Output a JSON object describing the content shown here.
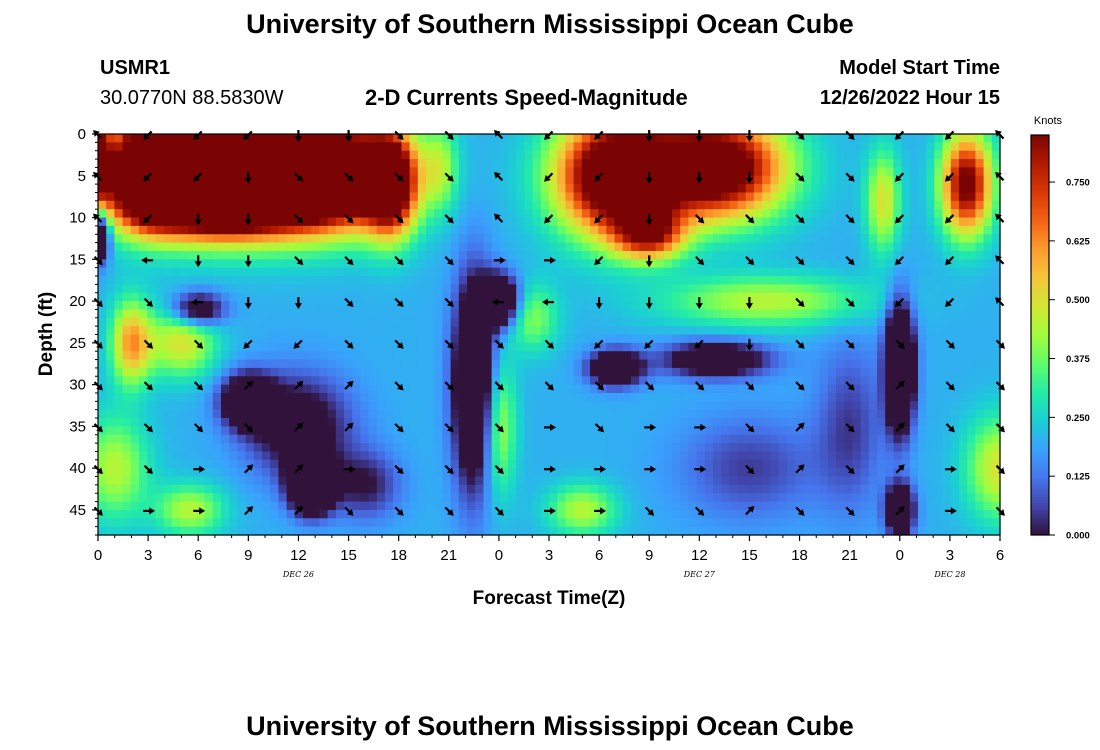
{
  "header": {
    "title": "University of Southern Mississippi Ocean Cube",
    "station_id": "USMR1",
    "coordinates": "30.0770N  88.5830W",
    "plot_title": "2-D Currents Speed-Magnitude",
    "model_start_label": "Model Start Time",
    "model_start_value": "12/26/2022 Hour 15"
  },
  "footer": {
    "title": "University of Southern Mississippi Ocean Cube"
  },
  "chart_data": {
    "type": "heatmap",
    "title": "2-D Currents Speed-Magnitude",
    "xlabel": "Forecast Time(Z)",
    "ylabel": "Depth (ft)",
    "x_ticks": [
      "0",
      "3",
      "6",
      "9",
      "12",
      "15",
      "18",
      "21",
      "0",
      "3",
      "6",
      "9",
      "12",
      "15",
      "18",
      "21",
      "0",
      "3",
      "6"
    ],
    "x_range_hours": [
      0,
      54
    ],
    "date_labels": [
      {
        "label": "DEC 26",
        "hour": 12
      },
      {
        "label": "DEC 27",
        "hour": 36
      },
      {
        "label": "DEC 28",
        "hour": 51
      }
    ],
    "y_ticks": [
      0,
      5,
      10,
      15,
      20,
      25,
      30,
      35,
      40,
      45
    ],
    "y_range_ft": [
      0,
      48
    ],
    "colorbar": {
      "label": "Knots",
      "ticks": [
        "0.000",
        "0.125",
        "0.250",
        "0.375",
        "0.500",
        "0.625",
        "0.750"
      ],
      "range": [
        0,
        0.85
      ],
      "colors": [
        "#30123b",
        "#4145ab",
        "#4675ed",
        "#39a2fc",
        "#1bcfd4",
        "#24eca6",
        "#61fc6c",
        "#a4fc3b",
        "#d1e834",
        "#f3c63a",
        "#fe9b2d",
        "#f36315",
        "#d93806",
        "#b11901",
        "#7a0403"
      ]
    },
    "speed_centers": [
      {
        "t": 8,
        "d": 4,
        "v": 0.9,
        "st": 6,
        "sd": 7
      },
      {
        "t": 3,
        "d": 4,
        "v": 0.8,
        "st": 2,
        "sd": 6
      },
      {
        "t": 14,
        "d": 5,
        "v": 0.85,
        "st": 4,
        "sd": 6
      },
      {
        "t": 17.5,
        "d": 6,
        "v": 0.7,
        "st": 1.5,
        "sd": 6
      },
      {
        "t": 7,
        "d": 8,
        "v": 0.8,
        "st": 5,
        "sd": 4
      },
      {
        "t": 31,
        "d": 5,
        "v": 0.9,
        "st": 3.5,
        "sd": 7
      },
      {
        "t": 37,
        "d": 4,
        "v": 0.85,
        "st": 4,
        "sd": 6
      },
      {
        "t": 33,
        "d": 12,
        "v": 0.5,
        "st": 2,
        "sd": 3
      },
      {
        "t": 52,
        "d": 6,
        "v": 0.7,
        "st": 1.5,
        "sd": 6
      },
      {
        "t": 0,
        "d": 3,
        "v": 0.55,
        "st": 0.8,
        "sd": 6
      },
      {
        "t": 2,
        "d": 25,
        "v": 0.4,
        "st": 1.2,
        "sd": 5
      },
      {
        "t": 47,
        "d": 8,
        "v": 0.3,
        "st": 1,
        "sd": 6
      },
      {
        "t": 20.5,
        "d": 4,
        "v": 0.2,
        "st": 1,
        "sd": 5
      },
      {
        "t": 54,
        "d": 40,
        "v": 0.3,
        "st": 2,
        "sd": 6
      },
      {
        "t": 1,
        "d": 40,
        "v": 0.25,
        "st": 2,
        "sd": 6
      },
      {
        "t": 5,
        "d": 25,
        "v": 0.3,
        "st": 2,
        "sd": 4
      },
      {
        "t": 5.5,
        "d": 45,
        "v": 0.25,
        "st": 2,
        "sd": 3
      },
      {
        "t": 26,
        "d": 22,
        "v": 0.2,
        "st": 1.5,
        "sd": 4
      },
      {
        "t": 29,
        "d": 45,
        "v": 0.25,
        "st": 2,
        "sd": 3
      },
      {
        "t": 40,
        "d": 20,
        "v": 0.25,
        "st": 6,
        "sd": 3
      },
      {
        "t": 24,
        "d": 35,
        "v": 0.25,
        "st": 1,
        "sd": 8
      }
    ],
    "low_centers": [
      {
        "t": 12.8,
        "d": 42,
        "v": 0.85,
        "st": 1.2,
        "sd": 3
      },
      {
        "t": 9,
        "d": 32,
        "v": 0.5,
        "st": 1.5,
        "sd": 3
      },
      {
        "t": 22.5,
        "d": 30,
        "v": 0.5,
        "st": 1.2,
        "sd": 12
      },
      {
        "t": 48,
        "d": 28,
        "v": 0.7,
        "st": 0.8,
        "sd": 7
      },
      {
        "t": 48,
        "d": 45,
        "v": 0.5,
        "st": 0.8,
        "sd": 3
      },
      {
        "t": 31,
        "d": 28,
        "v": 0.5,
        "st": 1.5,
        "sd": 2
      },
      {
        "t": 0.2,
        "d": 12,
        "v": 0.5,
        "st": 0.5,
        "sd": 3
      },
      {
        "t": 24,
        "d": 20,
        "v": 0.5,
        "st": 1.2,
        "sd": 3
      },
      {
        "t": 6,
        "d": 21,
        "v": 0.35,
        "st": 1.5,
        "sd": 2
      },
      {
        "t": 12,
        "d": 35,
        "v": 0.3,
        "st": 3,
        "sd": 6
      },
      {
        "t": 37,
        "d": 27,
        "v": 0.4,
        "st": 3,
        "sd": 2
      },
      {
        "t": 16,
        "d": 42,
        "v": 0.2,
        "st": 2,
        "sd": 4
      },
      {
        "t": 39,
        "d": 40,
        "v": 0.15,
        "st": 4,
        "sd": 6
      },
      {
        "t": 45,
        "d": 35,
        "v": 0.15,
        "st": 2,
        "sd": 10
      }
    ],
    "base_speed": 0.2,
    "vector_times": [
      0,
      3,
      6,
      9,
      12,
      15,
      18,
      21,
      24,
      27,
      30,
      33,
      36,
      39,
      42,
      45,
      48,
      51,
      54
    ],
    "vector_depths": [
      0,
      5,
      10,
      15,
      20,
      25,
      30,
      35,
      40,
      45
    ],
    "vector_directions_deg": [
      [
        315,
        225,
        225,
        225,
        180,
        180,
        135,
        135,
        315,
        225,
        225,
        180,
        180,
        180,
        135,
        135,
        225,
        225,
        315
      ],
      [
        315,
        225,
        225,
        180,
        135,
        135,
        135,
        135,
        315,
        225,
        225,
        180,
        180,
        180,
        135,
        135,
        225,
        225,
        315
      ],
      [
        315,
        225,
        180,
        180,
        135,
        135,
        135,
        135,
        315,
        225,
        225,
        180,
        135,
        135,
        135,
        135,
        225,
        225,
        315
      ],
      [
        135,
        270,
        180,
        180,
        135,
        135,
        135,
        135,
        90,
        90,
        225,
        180,
        135,
        135,
        135,
        135,
        225,
        225,
        315
      ],
      [
        135,
        135,
        270,
        180,
        180,
        135,
        135,
        135,
        270,
        270,
        180,
        180,
        180,
        180,
        135,
        135,
        225,
        225,
        315
      ],
      [
        135,
        135,
        135,
        225,
        225,
        135,
        135,
        135,
        135,
        135,
        225,
        225,
        225,
        180,
        135,
        135,
        135,
        135,
        135
      ],
      [
        135,
        135,
        135,
        45,
        45,
        45,
        135,
        135,
        135,
        135,
        135,
        135,
        135,
        135,
        135,
        135,
        45,
        135,
        135
      ],
      [
        135,
        135,
        135,
        135,
        45,
        45,
        135,
        135,
        135,
        90,
        135,
        90,
        90,
        135,
        45,
        135,
        45,
        135,
        135
      ],
      [
        135,
        135,
        90,
        45,
        45,
        90,
        135,
        135,
        135,
        90,
        90,
        90,
        90,
        135,
        45,
        135,
        45,
        90,
        135
      ],
      [
        135,
        90,
        90,
        45,
        45,
        135,
        135,
        135,
        135,
        90,
        90,
        135,
        135,
        45,
        135,
        135,
        45,
        90,
        135
      ]
    ]
  }
}
